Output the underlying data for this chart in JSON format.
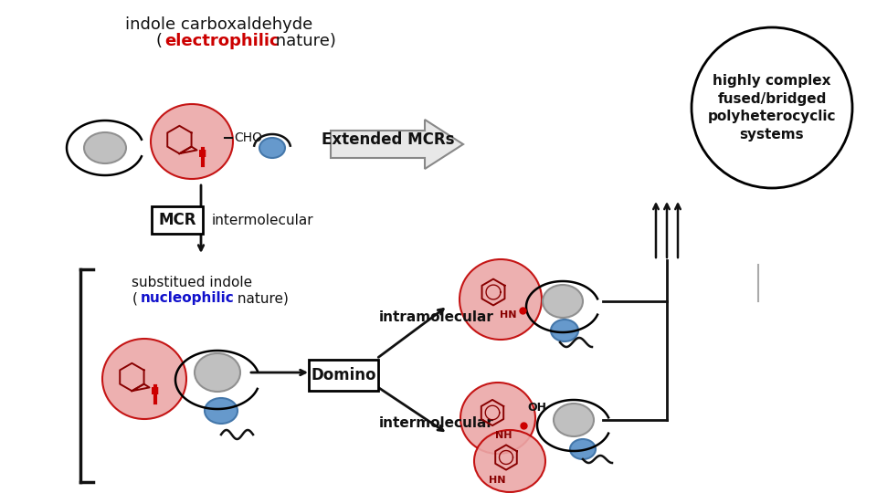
{
  "bg_color": "#ffffff",
  "title_line1": "indole carboxaldehyde",
  "label_electrophilic": "electrophilic",
  "label_nucleophilic": "nucleophilic",
  "label_nature1": " nature)",
  "label_nature2": " nature)",
  "label_MCR": "MCR",
  "label_intermolecular_top": "intermolecular",
  "label_intramolecular": "intramolecular",
  "label_intermolecular_bot": "intermolecular",
  "label_domino": "Domino",
  "label_extended_mcrs": "Extended MCRs",
  "label_complex": "highly complex\nfused/bridged\npolyheterocyclic\nsystems",
  "label_substitued": "substitued indole",
  "label_CHO": "CHO",
  "label_HN_top": "HN",
  "label_NH_mid": "NH",
  "label_HN_bot": "HN",
  "label_OH": "OH",
  "red_blob_color": "#eba8a8",
  "red_blob_edge": "#c00000",
  "blue_circle_color": "#6699cc",
  "gray_circle_color": "#c0c0c0",
  "gray_circle_edge": "#909090",
  "arrow_color": "#222222",
  "text_color": "#111111",
  "red_text": "#cc0000",
  "blue_text": "#1111cc",
  "font_size_title": 12,
  "font_size_label": 11,
  "font_size_small": 9
}
